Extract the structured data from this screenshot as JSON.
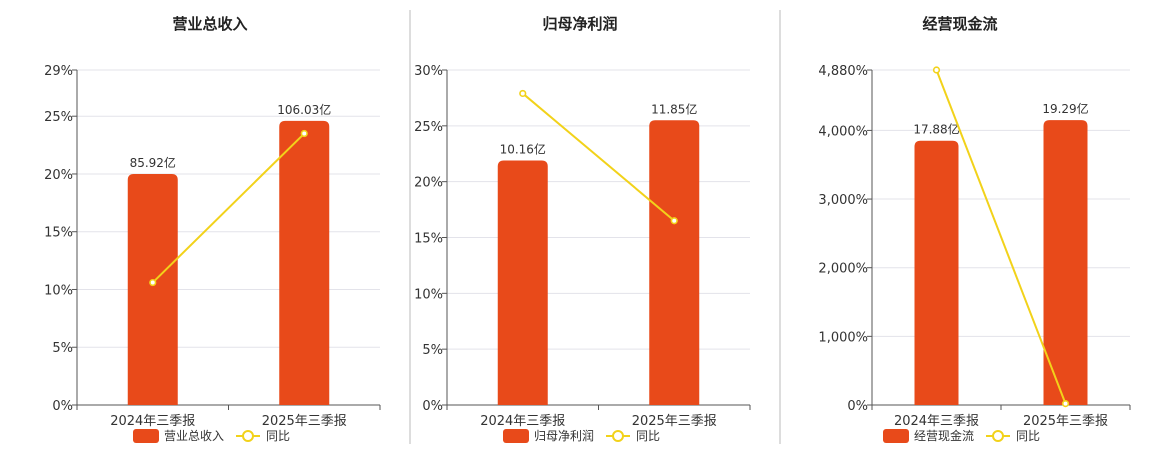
{
  "colors": {
    "bar": "#e84a1a",
    "line": "#f2d21a",
    "grid": "#e3e3ea",
    "axis": "#555555",
    "divider": "#bbbbbb"
  },
  "chart_data": [
    {
      "type": "bar",
      "title": "营业总收入",
      "categories": [
        "2024年三季报",
        "2025年三季报"
      ],
      "ylim": [
        0,
        29
      ],
      "yticks": [
        0,
        5,
        10,
        15,
        20,
        25,
        29
      ],
      "ytick_labels": [
        "0%",
        "5%",
        "10%",
        "15%",
        "20%",
        "25%",
        "29%"
      ],
      "series": [
        {
          "name": "营业总收入",
          "type": "bar",
          "values": [
            20,
            24.6
          ],
          "labels": [
            "85.92亿",
            "106.03亿"
          ]
        },
        {
          "name": "同比",
          "type": "line",
          "values": [
            10.6,
            23.5
          ]
        }
      ],
      "grid": true,
      "legend": "bottom"
    },
    {
      "type": "bar",
      "title": "归母净利润",
      "categories": [
        "2024年三季报",
        "2025年三季报"
      ],
      "ylim": [
        0,
        30
      ],
      "yticks": [
        0,
        5,
        10,
        15,
        20,
        25,
        30
      ],
      "ytick_labels": [
        "0%",
        "5%",
        "10%",
        "15%",
        "20%",
        "25%",
        "30%"
      ],
      "series": [
        {
          "name": "归母净利润",
          "type": "bar",
          "values": [
            21.9,
            25.5
          ],
          "labels": [
            "10.16亿",
            "11.85亿"
          ]
        },
        {
          "name": "同比",
          "type": "line",
          "values": [
            27.9,
            16.5
          ]
        }
      ],
      "grid": true,
      "legend": "bottom"
    },
    {
      "type": "bar",
      "title": "经营现金流",
      "categories": [
        "2024年三季报",
        "2025年三季报"
      ],
      "ylim": [
        0,
        4880
      ],
      "yticks": [
        0,
        1000,
        2000,
        3000,
        4000,
        4880
      ],
      "ytick_labels": [
        "0%",
        "1,000%",
        "2,000%",
        "3,000%",
        "4,000%",
        "4,880%"
      ],
      "series": [
        {
          "name": "经营现金流",
          "type": "bar",
          "values": [
            3850,
            4150
          ],
          "labels": [
            "17.88亿",
            "19.29亿"
          ]
        },
        {
          "name": "同比",
          "type": "line",
          "values": [
            4880,
            20
          ]
        }
      ],
      "grid": true,
      "legend": "bottom"
    }
  ]
}
